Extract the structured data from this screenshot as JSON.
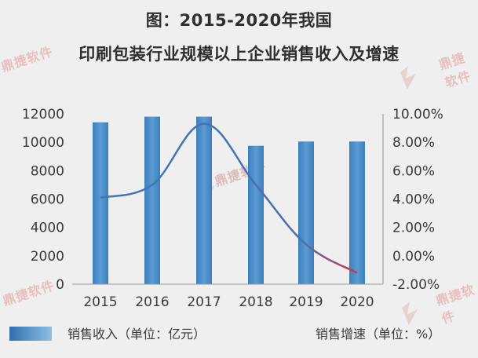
{
  "watermark": "鼎捷软件",
  "chart_data": {
    "type": "bar+line",
    "title": "图：2015-2020年我国",
    "subtitle": "印刷包装行业规模以上企业销售收入及增速",
    "categories": [
      "2015",
      "2016",
      "2017",
      "2018",
      "2019",
      "2020"
    ],
    "series": [
      {
        "name": "销售收入（单位：亿元）",
        "type": "bar",
        "axis": "left",
        "values": [
          11400,
          11800,
          11800,
          9750,
          10050,
          10050
        ]
      },
      {
        "name": "销售增速（单位：%）",
        "type": "line",
        "axis": "right",
        "values": [
          4.1,
          5.0,
          9.3,
          5.0,
          0.8,
          -1.2
        ]
      }
    ],
    "y_left": {
      "min": 0,
      "max": 12000,
      "ticks": [
        "0",
        "2000",
        "4000",
        "6000",
        "8000",
        "10000",
        "12000"
      ]
    },
    "y_right": {
      "min": -2,
      "max": 10,
      "ticks": [
        "-2.00%",
        "0.00%",
        "2.00%",
        "4.00%",
        "6.00%",
        "8.00%",
        "10.00%"
      ]
    },
    "colors": {
      "bar": "#4a8dc4",
      "bar_light": "#6aa5d6",
      "line": "#3f75b8",
      "line_end": "#c0404a"
    },
    "grid": false,
    "legend": "bottom"
  }
}
